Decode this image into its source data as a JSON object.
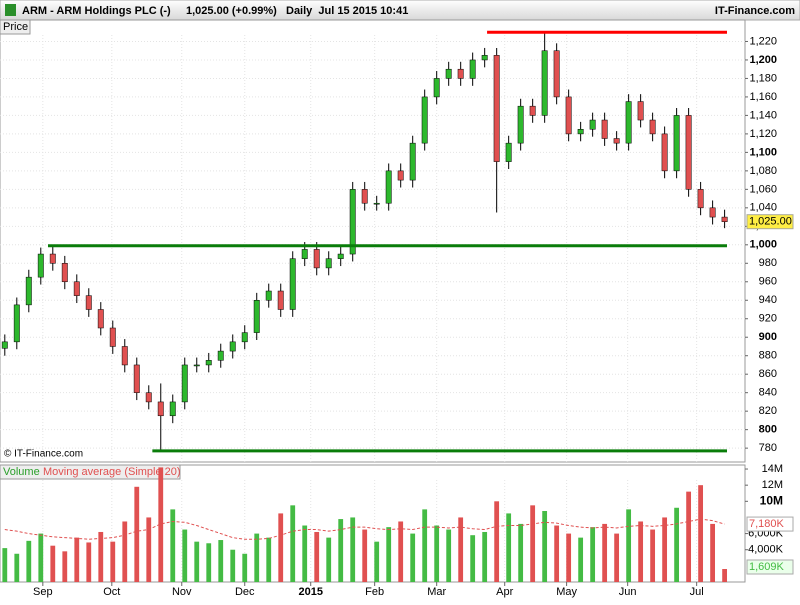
{
  "header": {
    "symbol": "ARM - ARM Holdings PLC (-)",
    "quote": "1,025.00 (+0.99%)",
    "period": "Daily  Jul 15 2015 10:41",
    "brand": "IT-Finance.com"
  },
  "chart_data": [
    {
      "type": "candlestick",
      "label": "Price",
      "copyright": "© IT-Finance.com",
      "up_color": "#2db82d",
      "down_color": "#e05050",
      "grid": true,
      "open": [
        888,
        895,
        935,
        965,
        990,
        980,
        960,
        945,
        930,
        910,
        890,
        870,
        840,
        830,
        815,
        830,
        870,
        870,
        875,
        885,
        895,
        905,
        940,
        950,
        930,
        985,
        995,
        975,
        985,
        990,
        1060,
        1045,
        1045,
        1080,
        1070,
        1110,
        1160,
        1180,
        1190,
        1180,
        1200,
        1205,
        1090,
        1110,
        1150,
        1140,
        1210,
        1160,
        1120,
        1125,
        1135,
        1115,
        1110,
        1155,
        1135,
        1120,
        1080,
        1140,
        1060,
        1040,
        1030
      ],
      "high": [
        903,
        943,
        973,
        997,
        998,
        988,
        968,
        953,
        938,
        918,
        898,
        878,
        848,
        850,
        838,
        878,
        878,
        883,
        893,
        903,
        913,
        948,
        958,
        958,
        993,
        1003,
        1003,
        993,
        998,
        1068,
        1068,
        1053,
        1088,
        1088,
        1118,
        1168,
        1188,
        1198,
        1198,
        1208,
        1213,
        1213,
        1118,
        1158,
        1158,
        1230,
        1218,
        1168,
        1133,
        1143,
        1143,
        1123,
        1163,
        1163,
        1143,
        1128,
        1148,
        1148,
        1068,
        1048,
        1038
      ],
      "low": [
        880,
        887,
        927,
        957,
        972,
        952,
        937,
        922,
        902,
        882,
        862,
        832,
        822,
        778,
        807,
        822,
        862,
        862,
        867,
        877,
        887,
        897,
        932,
        922,
        922,
        977,
        967,
        967,
        977,
        982,
        1037,
        1037,
        1037,
        1062,
        1062,
        1102,
        1152,
        1172,
        1172,
        1172,
        1192,
        1035,
        1082,
        1102,
        1132,
        1132,
        1152,
        1112,
        1112,
        1117,
        1107,
        1102,
        1102,
        1127,
        1112,
        1072,
        1072,
        1052,
        1032,
        1022,
        1018
      ],
      "close": [
        895,
        935,
        965,
        990,
        980,
        960,
        945,
        930,
        910,
        890,
        870,
        840,
        830,
        815,
        830,
        870,
        870,
        875,
        885,
        895,
        905,
        940,
        950,
        930,
        985,
        995,
        975,
        985,
        990,
        1060,
        1045,
        1045,
        1080,
        1070,
        1110,
        1160,
        1180,
        1190,
        1180,
        1200,
        1205,
        1090,
        1110,
        1150,
        1140,
        1210,
        1160,
        1120,
        1125,
        1135,
        1115,
        1110,
        1155,
        1135,
        1120,
        1080,
        1140,
        1060,
        1040,
        1030,
        1025
      ],
      "xlim": [
        -0.4,
        61.7
      ],
      "xticks": [
        {
          "value": 3.17,
          "label": "Sep"
        },
        {
          "value": 8.92,
          "label": "Oct"
        },
        {
          "value": 14.75,
          "label": "Nov"
        },
        {
          "value": 20,
          "label": "Dec"
        },
        {
          "value": 25.5,
          "label": "2015"
        },
        {
          "value": 30.83,
          "label": "Feb"
        },
        {
          "value": 36,
          "label": "Mar"
        },
        {
          "value": 41.67,
          "label": "Apr"
        },
        {
          "value": 46.83,
          "label": "May"
        },
        {
          "value": 51.92,
          "label": "Jun"
        },
        {
          "value": 57.67,
          "label": "Jul"
        }
      ],
      "ylim": [
        765,
        1227
      ],
      "yticks": [
        780,
        800,
        820,
        840,
        860,
        880,
        900,
        920,
        940,
        960,
        980,
        {
          "value": 1000,
          "label": "1,000"
        },
        {
          "value": 1020,
          "label": "1,020"
        },
        {
          "value": 1040,
          "label": "1,040"
        },
        {
          "value": 1060,
          "label": "1,060"
        },
        {
          "value": 1080,
          "label": "1,080"
        },
        {
          "value": 1100,
          "label": "1,100"
        },
        {
          "value": 1120,
          "label": "1,120"
        },
        {
          "value": 1140,
          "label": "1,140"
        },
        {
          "value": 1160,
          "label": "1,160"
        },
        {
          "value": 1180,
          "label": "1,180"
        },
        {
          "value": 1200,
          "label": "1,200"
        },
        {
          "value": 1220,
          "label": "1,220"
        }
      ],
      "levels": [
        {
          "value": 1230,
          "color": "#ff0000",
          "start": 40.2,
          "end": 60.2
        },
        {
          "value": 999,
          "color": "#0a7d0a",
          "start": 3.6,
          "end": 60.2
        },
        {
          "value": 777,
          "color": "#0a7d0a",
          "start": 12.3,
          "end": 60.2
        }
      ],
      "last_price": {
        "value": 1025,
        "label": "1,025.00"
      }
    },
    {
      "type": "bar",
      "ylim": [
        0,
        14500000
      ],
      "yticks": [
        {
          "value": 14000000,
          "label": "14M"
        },
        {
          "value": 12000000,
          "label": "12M"
        },
        {
          "value": 10000000,
          "label": "10M"
        },
        {
          "value": 6000000,
          "label": "6,000K"
        },
        {
          "value": 4000000,
          "label": "4,000K"
        }
      ],
      "series": [
        {
          "name": "Volume",
          "color": "#44bb44",
          "values": [
            4200000,
            3500000,
            5100000,
            6000000,
            4500000,
            3800000,
            5500000,
            4900000,
            6200000,
            5000000,
            7500000,
            11800000,
            8000000,
            14200000,
            9000000,
            6500000,
            5000000,
            4800000,
            5200000,
            4000000,
            3500000,
            6000000,
            5500000,
            8500000,
            9500000,
            7000000,
            6200000,
            5500000,
            7800000,
            8000000,
            6500000,
            5000000,
            6800000,
            7500000,
            6000000,
            9000000,
            7000000,
            6500000,
            8000000,
            5800000,
            6200000,
            10000000,
            8500000,
            7200000,
            9500000,
            8800000,
            7000000,
            6000000,
            5500000,
            6800000,
            7200000,
            6000000,
            9000000,
            7500000,
            6500000,
            8000000,
            9200000,
            11200000,
            12000000,
            7200000,
            1609000
          ],
          "last_label": "1,609K"
        },
        {
          "name": "Moving average (Simple 20)",
          "color": "#e05050",
          "values": [
            6500000,
            6300000,
            6000000,
            5800000,
            5600000,
            5500000,
            5400000,
            5300000,
            5400000,
            5500000,
            5800000,
            6300000,
            6500000,
            7200000,
            7500000,
            7400000,
            7000000,
            6500000,
            6000000,
            5500000,
            5300000,
            5300000,
            5400000,
            5800000,
            6300000,
            6500000,
            6500000,
            6300000,
            6500000,
            6800000,
            6800000,
            6600000,
            6500000,
            6600000,
            6500000,
            6800000,
            6800000,
            6700000,
            6800000,
            6600000,
            6500000,
            6900000,
            7000000,
            7000000,
            7200000,
            7400000,
            7300000,
            7000000,
            6800000,
            6700000,
            6800000,
            6700000,
            6900000,
            7000000,
            6900000,
            7000000,
            7200000,
            7500000,
            7800000,
            7600000,
            7180000
          ],
          "last_label": "7,180K"
        }
      ]
    }
  ]
}
